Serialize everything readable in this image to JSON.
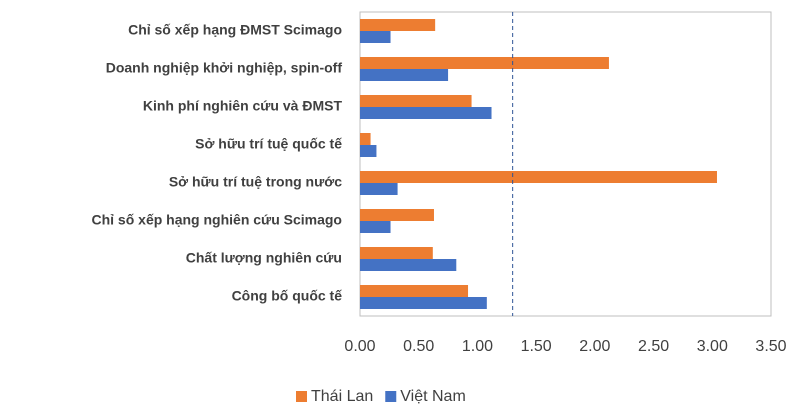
{
  "chart_data": {
    "type": "hbar",
    "categories": [
      "Chỉ số xếp hạng ĐMST Scimago",
      "Doanh nghiệp khởi nghiệp, spin-off",
      "Kinh phí nghiên cứu và ĐMST",
      "Sở hữu trí tuệ quốc tế",
      "Sở hữu trí tuệ trong nước",
      "Chỉ số xếp hạng nghiên cứu Scimago",
      "Chất lượng nghiên cứu",
      "Công bố quốc tế"
    ],
    "series": [
      {
        "name": "Thái Lan",
        "color": "#ed7d31",
        "values": [
          0.64,
          2.12,
          0.95,
          0.09,
          3.04,
          0.63,
          0.62,
          0.92
        ]
      },
      {
        "name": "Việt Nam",
        "color": "#4472c4",
        "values": [
          0.26,
          0.75,
          1.12,
          0.14,
          0.32,
          0.26,
          0.82,
          1.08
        ]
      }
    ],
    "xlim": [
      0,
      3.5
    ],
    "xticks": [
      {
        "value": 0,
        "label": "0.00"
      },
      {
        "value": 0.5,
        "label": "0.50"
      },
      {
        "value": 1,
        "label": "1.00"
      },
      {
        "value": 1.5,
        "label": "1.50"
      },
      {
        "value": 2,
        "label": "2.00"
      },
      {
        "value": 2.5,
        "label": "2.50"
      },
      {
        "value": 3,
        "label": "3.00"
      },
      {
        "value": 3.5,
        "label": "3.50"
      }
    ],
    "reference_line": 1.3,
    "legend": "bottom"
  }
}
